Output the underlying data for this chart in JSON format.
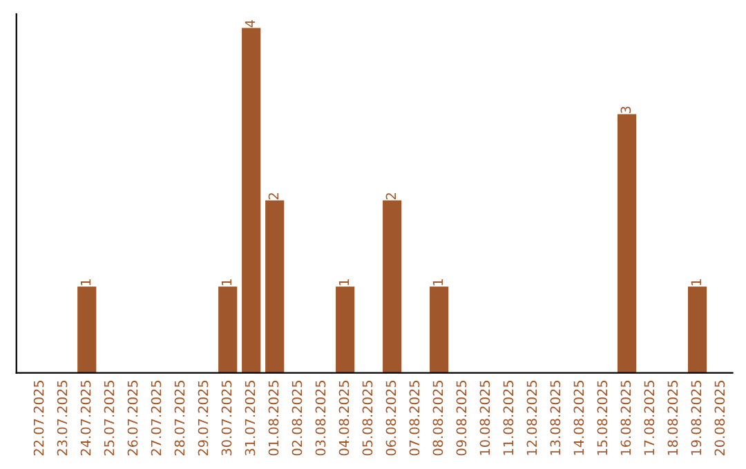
{
  "chart_data": {
    "type": "bar",
    "categories": [
      "22.07.2025",
      "23.07.2025",
      "24.07.2025",
      "25.07.2025",
      "26.07.2025",
      "27.07.2025",
      "28.07.2025",
      "29.07.2025",
      "30.07.2025",
      "31.07.2025",
      "01.08.2025",
      "02.08.2025",
      "03.08.2025",
      "04.08.2025",
      "05.08.2025",
      "06.08.2025",
      "07.08.2025",
      "08.08.2025",
      "09.08.2025",
      "10.08.2025",
      "11.08.2025",
      "12.08.2025",
      "13.08.2025",
      "14.08.2025",
      "15.08.2025",
      "16.08.2025",
      "17.08.2025",
      "18.08.2025",
      "19.08.2025",
      "20.08.2025"
    ],
    "values": [
      0,
      0,
      1,
      0,
      0,
      0,
      0,
      0,
      1,
      4,
      2,
      0,
      0,
      1,
      0,
      2,
      0,
      1,
      0,
      0,
      0,
      0,
      0,
      0,
      0,
      3,
      0,
      0,
      1,
      0
    ],
    "value_labels": [
      null,
      null,
      "1",
      null,
      null,
      null,
      null,
      null,
      "1",
      "4",
      "2",
      null,
      null,
      "1",
      null,
      "2",
      null,
      "1",
      null,
      null,
      null,
      null,
      null,
      null,
      null,
      "3",
      null,
      null,
      "1",
      null
    ],
    "color": "#a0572b",
    "grid": false,
    "legend": false
  }
}
